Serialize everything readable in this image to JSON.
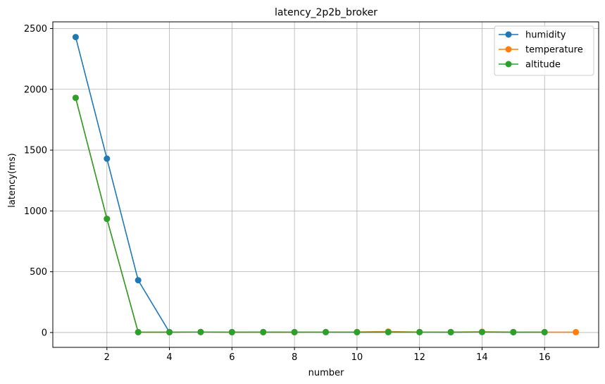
{
  "chart_data": {
    "type": "line",
    "title": "latency_2p2b_broker",
    "xlabel": "number",
    "ylabel": "latency(ms)",
    "xlim": [
      0.27,
      17.73
    ],
    "ylim": [
      -122,
      2555
    ],
    "xticks": [
      2,
      4,
      6,
      8,
      10,
      12,
      14,
      16
    ],
    "yticks": [
      0,
      500,
      1000,
      1500,
      2000,
      2500
    ],
    "grid": true,
    "legend_position": "top-right",
    "series": [
      {
        "name": "humidity",
        "color": "#1f77b4",
        "x": [
          1,
          2,
          3,
          4,
          5,
          6,
          7,
          8,
          9,
          10,
          11,
          12,
          13,
          14,
          15,
          16
        ],
        "y": [
          2430,
          1430,
          430,
          3,
          4,
          3,
          4,
          3,
          4,
          3,
          4,
          4,
          3,
          4,
          3,
          3
        ]
      },
      {
        "name": "temperature",
        "color": "#ff7f0e",
        "x": [
          1,
          2,
          3,
          4,
          5,
          6,
          7,
          8,
          9,
          10,
          11,
          12,
          13,
          14,
          15,
          16,
          17
        ],
        "y": [
          1930,
          935,
          3,
          3,
          4,
          3,
          3,
          3,
          4,
          4,
          8,
          4,
          4,
          6,
          4,
          3,
          3
        ]
      },
      {
        "name": "altitude",
        "color": "#2ca02c",
        "x": [
          1,
          2,
          3,
          4,
          5,
          6,
          7,
          8,
          9,
          10,
          11,
          12,
          13,
          14,
          15,
          16
        ],
        "y": [
          1930,
          935,
          3,
          3,
          4,
          3,
          3,
          3,
          3,
          3,
          3,
          3,
          3,
          4,
          3,
          3
        ]
      }
    ]
  }
}
